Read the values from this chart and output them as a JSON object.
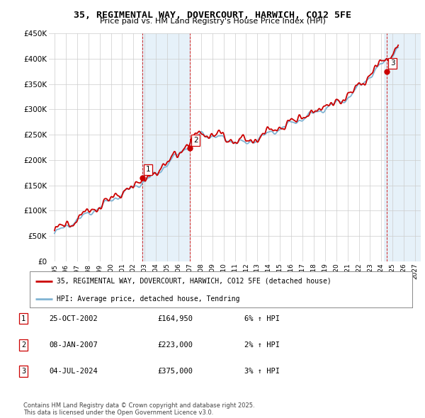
{
  "title": "35, REGIMENTAL WAY, DOVERCOURT, HARWICH, CO12 5FE",
  "subtitle": "Price paid vs. HM Land Registry's House Price Index (HPI)",
  "ylim": [
    0,
    450000
  ],
  "yticks": [
    0,
    50000,
    100000,
    150000,
    200000,
    250000,
    300000,
    350000,
    400000,
    450000
  ],
  "ytick_labels": [
    "£0",
    "£50K",
    "£100K",
    "£150K",
    "£200K",
    "£250K",
    "£300K",
    "£350K",
    "£400K",
    "£450K"
  ],
  "xlim_start": 1994.5,
  "xlim_end": 2027.5,
  "sale1_x": 2002.81,
  "sale1_y": 164950,
  "sale2_x": 2007.02,
  "sale2_y": 223000,
  "sale3_x": 2024.5,
  "sale3_y": 375000,
  "sale_color": "#cc0000",
  "hpi_color": "#7fb3d3",
  "shade_color": "#d6e8f5",
  "grid_color": "#cccccc",
  "legend_line1": "35, REGIMENTAL WAY, DOVERCOURT, HARWICH, CO12 5FE (detached house)",
  "legend_line2": "HPI: Average price, detached house, Tendring",
  "table_data": [
    [
      "1",
      "25-OCT-2002",
      "£164,950",
      "6% ↑ HPI"
    ],
    [
      "2",
      "08-JAN-2007",
      "£223,000",
      "2% ↑ HPI"
    ],
    [
      "3",
      "04-JUL-2024",
      "£375,000",
      "3% ↑ HPI"
    ]
  ],
  "footnote": "Contains HM Land Registry data © Crown copyright and database right 2025.\nThis data is licensed under the Open Government Licence v3.0.",
  "bg_color": "#ffffff"
}
